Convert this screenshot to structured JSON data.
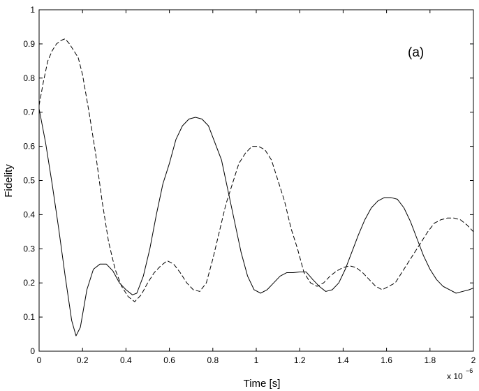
{
  "chart_data": {
    "type": "line",
    "xlabel": "Time [s]",
    "ylabel": "Fidelity",
    "annotation": "(a)",
    "x_multiplier": {
      "base": "x 10",
      "exponent": "−6"
    },
    "xlim": [
      0,
      2
    ],
    "ylim": [
      0,
      1
    ],
    "x_ticks": [
      0,
      0.2,
      0.4,
      0.6,
      0.8,
      1,
      1.2,
      1.4,
      1.6,
      1.8,
      2
    ],
    "x_tick_labels": [
      "0",
      "0.2",
      "0.4",
      "0.6",
      "0.8",
      "1",
      "1.2",
      "1.4",
      "1.6",
      "1.8",
      "2"
    ],
    "y_ticks": [
      0,
      0.1,
      0.2,
      0.3,
      0.4,
      0.5,
      0.6,
      0.7,
      0.8,
      0.9,
      1
    ],
    "y_tick_labels": [
      "0",
      "0.1",
      "0.2",
      "0.3",
      "0.4",
      "0.5",
      "0.6",
      "0.7",
      "0.8",
      "0.9",
      "1"
    ],
    "grid": false,
    "legend": false,
    "series": [
      {
        "style": "solid",
        "color": "#000000",
        "x": [
          0,
          0.03,
          0.06,
          0.09,
          0.12,
          0.15,
          0.17,
          0.19,
          0.22,
          0.25,
          0.28,
          0.31,
          0.34,
          0.37,
          0.4,
          0.43,
          0.45,
          0.48,
          0.51,
          0.54,
          0.57,
          0.6,
          0.63,
          0.66,
          0.69,
          0.72,
          0.75,
          0.78,
          0.81,
          0.84,
          0.87,
          0.9,
          0.93,
          0.96,
          0.99,
          1.02,
          1.05,
          1.08,
          1.11,
          1.14,
          1.17,
          1.2,
          1.23,
          1.26,
          1.29,
          1.32,
          1.35,
          1.38,
          1.41,
          1.44,
          1.47,
          1.5,
          1.53,
          1.56,
          1.59,
          1.62,
          1.65,
          1.68,
          1.71,
          1.74,
          1.77,
          1.8,
          1.83,
          1.86,
          1.89,
          1.92,
          1.95,
          1.98,
          2.0
        ],
        "y": [
          0.71,
          0.61,
          0.49,
          0.36,
          0.22,
          0.09,
          0.045,
          0.07,
          0.18,
          0.24,
          0.255,
          0.255,
          0.235,
          0.2,
          0.18,
          0.165,
          0.17,
          0.22,
          0.3,
          0.4,
          0.49,
          0.55,
          0.62,
          0.66,
          0.68,
          0.685,
          0.68,
          0.66,
          0.61,
          0.56,
          0.47,
          0.38,
          0.29,
          0.22,
          0.18,
          0.17,
          0.18,
          0.2,
          0.22,
          0.23,
          0.23,
          0.232,
          0.232,
          0.21,
          0.19,
          0.175,
          0.18,
          0.2,
          0.24,
          0.29,
          0.34,
          0.385,
          0.42,
          0.44,
          0.45,
          0.45,
          0.445,
          0.42,
          0.38,
          0.33,
          0.28,
          0.24,
          0.21,
          0.19,
          0.18,
          0.17,
          0.175,
          0.18,
          0.185
        ]
      },
      {
        "style": "dashed",
        "color": "#000000",
        "x": [
          0,
          0.02,
          0.04,
          0.06,
          0.08,
          0.1,
          0.12,
          0.14,
          0.16,
          0.18,
          0.2,
          0.23,
          0.26,
          0.29,
          0.32,
          0.35,
          0.38,
          0.41,
          0.44,
          0.47,
          0.5,
          0.53,
          0.56,
          0.59,
          0.62,
          0.65,
          0.68,
          0.71,
          0.74,
          0.77,
          0.8,
          0.83,
          0.86,
          0.89,
          0.92,
          0.95,
          0.98,
          1.01,
          1.04,
          1.07,
          1.1,
          1.13,
          1.16,
          1.19,
          1.22,
          1.25,
          1.28,
          1.31,
          1.34,
          1.37,
          1.4,
          1.43,
          1.46,
          1.49,
          1.52,
          1.55,
          1.58,
          1.61,
          1.64,
          1.67,
          1.7,
          1.73,
          1.76,
          1.79,
          1.82,
          1.85,
          1.88,
          1.91,
          1.94,
          1.97,
          2.0
        ],
        "y": [
          0.72,
          0.79,
          0.85,
          0.88,
          0.9,
          0.91,
          0.915,
          0.9,
          0.88,
          0.86,
          0.81,
          0.7,
          0.58,
          0.44,
          0.32,
          0.24,
          0.19,
          0.16,
          0.145,
          0.165,
          0.2,
          0.23,
          0.25,
          0.265,
          0.255,
          0.23,
          0.2,
          0.18,
          0.175,
          0.2,
          0.27,
          0.35,
          0.43,
          0.49,
          0.55,
          0.58,
          0.6,
          0.6,
          0.59,
          0.56,
          0.5,
          0.44,
          0.36,
          0.3,
          0.23,
          0.2,
          0.19,
          0.2,
          0.22,
          0.235,
          0.245,
          0.25,
          0.245,
          0.23,
          0.21,
          0.19,
          0.18,
          0.19,
          0.2,
          0.23,
          0.26,
          0.29,
          0.32,
          0.35,
          0.375,
          0.385,
          0.39,
          0.39,
          0.385,
          0.37,
          0.35
        ]
      }
    ]
  }
}
